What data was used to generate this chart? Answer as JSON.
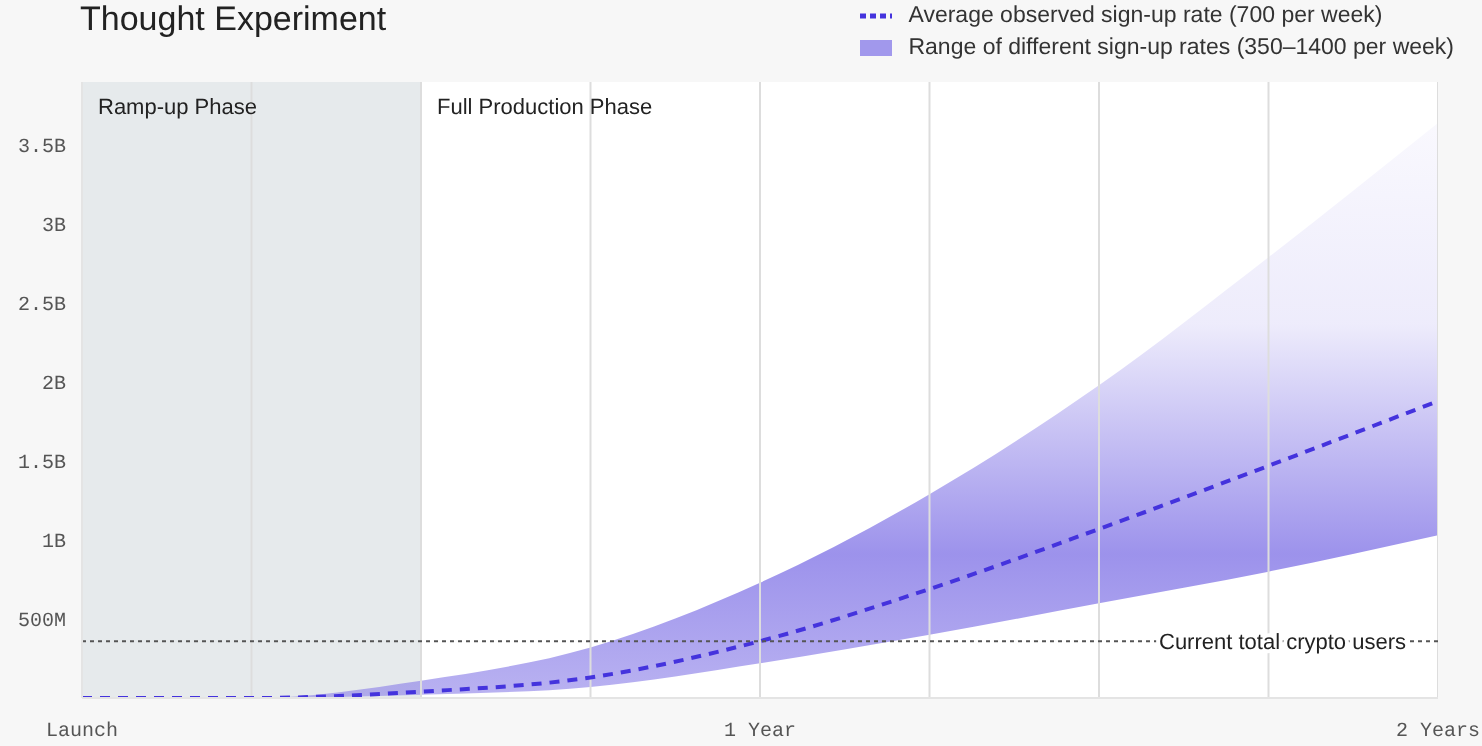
{
  "chart_data": {
    "type": "line",
    "title": "Thought Experiment",
    "x": [
      0,
      0.25,
      0.5,
      0.75,
      1,
      1.25,
      1.5,
      1.75,
      2
    ],
    "xlim": [
      0,
      2
    ],
    "xticks": [
      {
        "value": 0,
        "label": "Launch"
      },
      {
        "value": 0.25,
        "label": null
      },
      {
        "value": 0.5,
        "label": null
      },
      {
        "value": 0.75,
        "label": null
      },
      {
        "value": 1,
        "label": "1 Year"
      },
      {
        "value": 1.25,
        "label": null
      },
      {
        "value": 1.5,
        "label": null
      },
      {
        "value": 1.75,
        "label": null
      },
      {
        "value": 2,
        "label": "2 Years"
      }
    ],
    "ylim": [
      0,
      3900000000
    ],
    "yticks": [
      {
        "value": 500000000,
        "label": "500M"
      },
      {
        "value": 1000000000,
        "label": "1B"
      },
      {
        "value": 1500000000,
        "label": "1.5B"
      },
      {
        "value": 2000000000,
        "label": "2B"
      },
      {
        "value": 2500000000,
        "label": "2.5B"
      },
      {
        "value": 3000000000,
        "label": "3B"
      },
      {
        "value": 3500000000,
        "label": "3.5B"
      }
    ],
    "series": [
      {
        "name": "Average observed sign-up rate (700 per week)",
        "color": "#4433dd",
        "values": [
          0,
          0,
          40000000,
          130000000,
          360000000,
          690000000,
          1070000000,
          1470000000,
          1880000000
        ],
        "lower": [
          0,
          0,
          20000000,
          70000000,
          220000000,
          400000000,
          600000000,
          800000000,
          1030000000
        ],
        "upper": [
          0,
          0,
          110000000,
          320000000,
          730000000,
          1290000000,
          1980000000,
          2790000000,
          3640000000
        ]
      }
    ],
    "annotations": [
      "Range of different sign-up rates (350–1400 per week)"
    ],
    "line_style": "dashed",
    "marker": "none",
    "grid": "x",
    "legend": "top right",
    "ref_lines": [
      {
        "axis": "y",
        "value": 360000000,
        "label": "Current total crypto users",
        "color": "#555555",
        "line_style": "dotted"
      }
    ],
    "bands": [
      {
        "axis": "x",
        "from": 0,
        "to": 0.5,
        "label": "Ramp-up Phase",
        "color": "#e6eaec"
      },
      {
        "axis": "x",
        "from": 0.5,
        "to": 2,
        "label": "Full Production Phase",
        "color": "#ffffff"
      }
    ]
  }
}
